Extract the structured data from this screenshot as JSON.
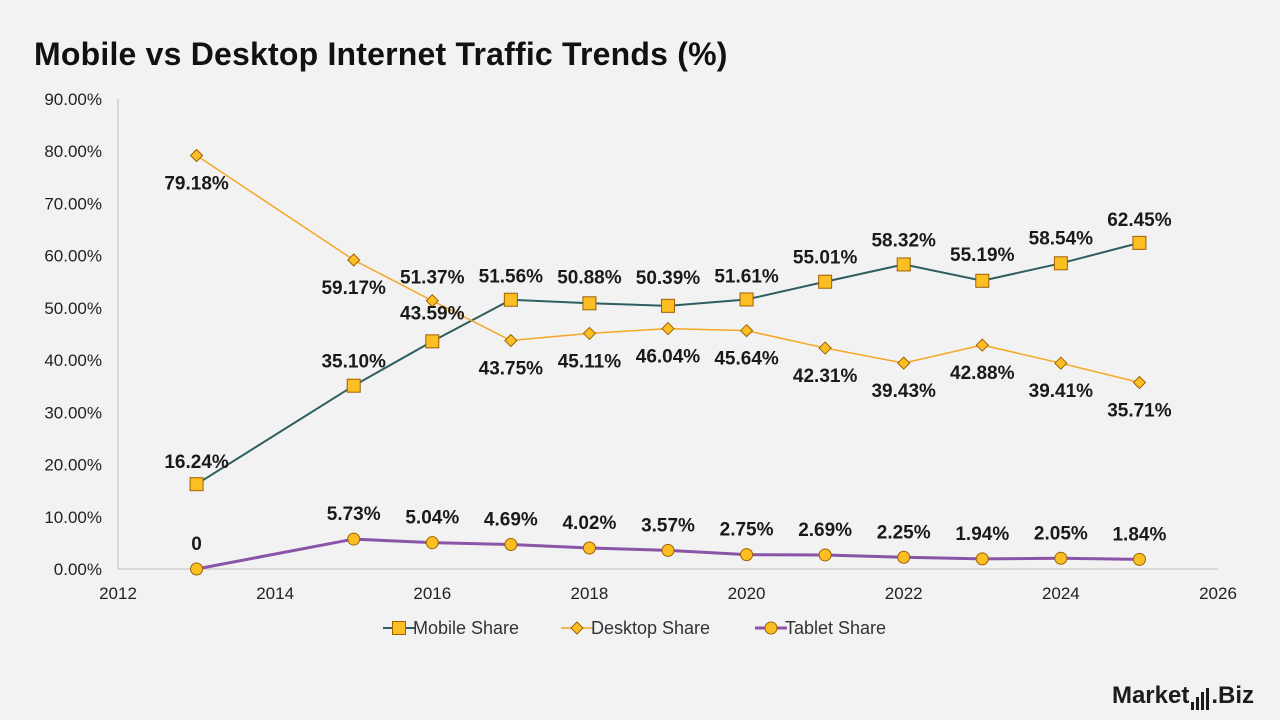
{
  "brand": {
    "name_left": "Market",
    "name_right": "Biz"
  },
  "colors": {
    "mobile_line": "#2e5e60",
    "desktop_line": "#f5a623",
    "tablet_line": "#8a55a8",
    "marker_fill": "#fbbf24",
    "marker_stroke": "#a06000",
    "axis": "#bfbfbf"
  },
  "chart_data": {
    "type": "line",
    "title": "Mobile vs Desktop Internet Traffic Trends (%)",
    "xlabel": "",
    "ylabel": "",
    "xlim": [
      2012,
      2026
    ],
    "ylim": [
      0,
      90
    ],
    "x_ticks": [
      "2012",
      "2014",
      "2016",
      "2018",
      "2020",
      "2022",
      "2024",
      "2026"
    ],
    "y_ticks": [
      "0.00%",
      "10.00%",
      "20.00%",
      "30.00%",
      "40.00%",
      "50.00%",
      "60.00%",
      "70.00%",
      "80.00%",
      "90.00%"
    ],
    "grid": false,
    "legend_position": "bottom",
    "series": [
      {
        "name": "Mobile Share",
        "marker": "square",
        "x": [
          2013,
          2015,
          2016,
          2017,
          2018,
          2019,
          2020,
          2021,
          2022,
          2023,
          2024,
          2025
        ],
        "values": [
          16.24,
          35.1,
          43.59,
          51.56,
          50.88,
          50.39,
          51.61,
          55.01,
          58.32,
          55.19,
          58.54,
          62.45
        ],
        "labels": [
          "16.24%",
          "35.10%",
          "43.59%",
          "51.56%",
          "50.88%",
          "50.39%",
          "51.61%",
          "55.01%",
          "58.32%",
          "55.19%",
          "58.54%",
          "62.45%"
        ]
      },
      {
        "name": "Desktop Share",
        "marker": "diamond",
        "x": [
          2013,
          2015,
          2016,
          2017,
          2018,
          2019,
          2020,
          2021,
          2022,
          2023,
          2024,
          2025
        ],
        "values": [
          79.18,
          59.17,
          51.37,
          43.75,
          45.11,
          46.04,
          45.64,
          42.31,
          39.43,
          42.88,
          39.41,
          35.71
        ],
        "labels": [
          "79.18%",
          "59.17%",
          "51.37%",
          "43.75%",
          "45.11%",
          "46.04%",
          "45.64%",
          "42.31%",
          "39.43%",
          "42.88%",
          "39.41%",
          "35.71%"
        ]
      },
      {
        "name": "Tablet Share",
        "marker": "circle",
        "x": [
          2013,
          2015,
          2016,
          2017,
          2018,
          2019,
          2020,
          2021,
          2022,
          2023,
          2024,
          2025
        ],
        "values": [
          0,
          5.73,
          5.04,
          4.69,
          4.02,
          3.57,
          2.75,
          2.69,
          2.25,
          1.94,
          2.05,
          1.84
        ],
        "labels": [
          "0",
          "5.73%",
          "5.04%",
          "4.69%",
          "4.02%",
          "3.57%",
          "2.75%",
          "2.69%",
          "2.25%",
          "1.94%",
          "2.05%",
          "1.84%"
        ]
      }
    ]
  }
}
